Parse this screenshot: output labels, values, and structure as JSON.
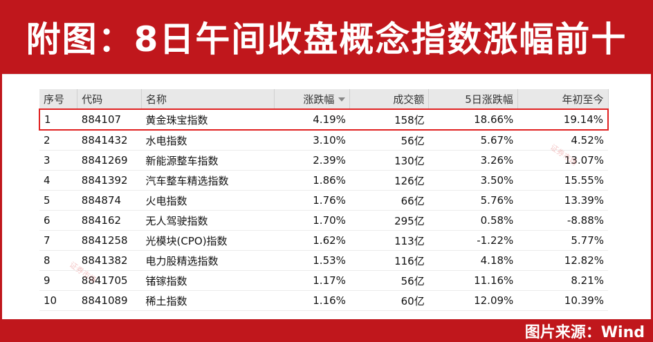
{
  "title": "附图：8日午间收盘概念指数涨幅前十",
  "source": "图片来源：Wind",
  "watermark": "证券市场",
  "columns": {
    "idx": "序号",
    "code": "代码",
    "name": "名称",
    "change": "涨跌幅",
    "volume": "成交额",
    "change_5d": "5日涨跌幅",
    "ytd": "年初至今"
  },
  "rows": [
    {
      "idx": "1",
      "code": "884107",
      "name": "黄金珠宝指数",
      "change": "4.19%",
      "volume": "158亿",
      "change_5d": "18.66%",
      "ytd": "19.14%"
    },
    {
      "idx": "2",
      "code": "8841432",
      "name": "水电指数",
      "change": "3.10%",
      "volume": "56亿",
      "change_5d": "5.67%",
      "ytd": "4.52%"
    },
    {
      "idx": "3",
      "code": "8841269",
      "name": "新能源整车指数",
      "change": "2.39%",
      "volume": "130亿",
      "change_5d": "3.26%",
      "ytd": "13.07%"
    },
    {
      "idx": "4",
      "code": "8841392",
      "name": "汽车整车精选指数",
      "change": "1.86%",
      "volume": "126亿",
      "change_5d": "3.50%",
      "ytd": "15.55%"
    },
    {
      "idx": "5",
      "code": "884874",
      "name": "火电指数",
      "change": "1.76%",
      "volume": "66亿",
      "change_5d": "5.76%",
      "ytd": "13.39%"
    },
    {
      "idx": "6",
      "code": "884162",
      "name": "无人驾驶指数",
      "change": "1.70%",
      "volume": "295亿",
      "change_5d": "0.58%",
      "ytd": "-8.88%"
    },
    {
      "idx": "7",
      "code": "8841258",
      "name": "光模块(CPO)指数",
      "change": "1.62%",
      "volume": "113亿",
      "change_5d": "-1.22%",
      "ytd": "5.77%"
    },
    {
      "idx": "8",
      "code": "8841382",
      "name": "电力股精选指数",
      "change": "1.53%",
      "volume": "116亿",
      "change_5d": "4.18%",
      "ytd": "12.82%"
    },
    {
      "idx": "9",
      "code": "8841705",
      "name": "锗镓指数",
      "change": "1.17%",
      "volume": "56亿",
      "change_5d": "11.16%",
      "ytd": "8.21%"
    },
    {
      "idx": "10",
      "code": "8841089",
      "name": "稀土指数",
      "change": "1.16%",
      "volume": "60亿",
      "change_5d": "12.09%",
      "ytd": "10.39%"
    }
  ],
  "colors": {
    "positive": "#e00000",
    "negative": "#0a8a0a",
    "frame": "#c0171c",
    "highlight": "#e02020"
  },
  "icons": {
    "sort": "sort-down-icon"
  }
}
